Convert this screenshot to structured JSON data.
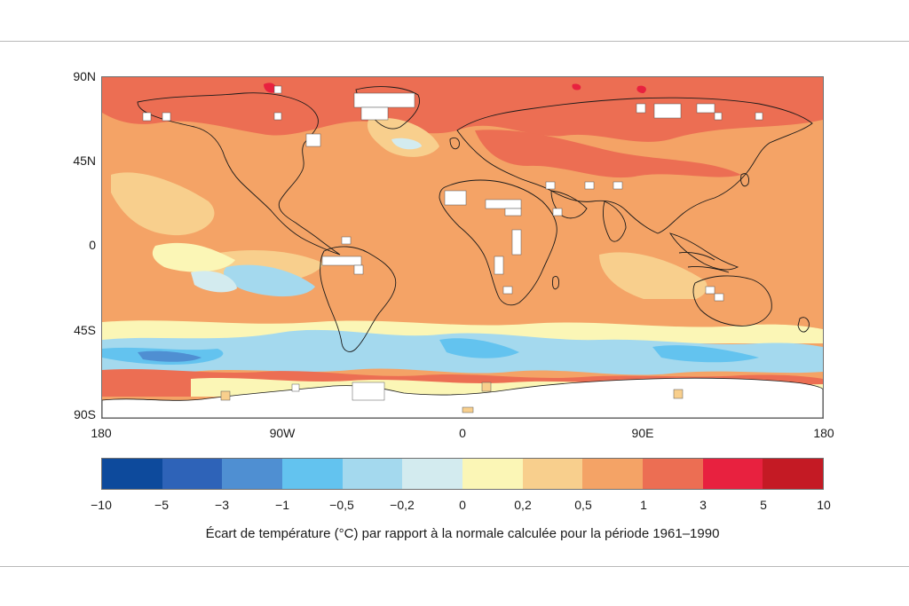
{
  "map": {
    "lat_labels": [
      "90N",
      "45N",
      "0",
      "45S",
      "90S"
    ],
    "lon_labels": [
      "180",
      "90W",
      "0",
      "90E",
      "180"
    ]
  },
  "legend": {
    "colors": [
      "#0d4a9c",
      "#2e63b8",
      "#4f8fd2",
      "#63c3ef",
      "#a4d9ee",
      "#d3ebef",
      "#fbf6b6",
      "#f8cf8d",
      "#f4a366",
      "#ec6e53",
      "#e8213f",
      "#c41a24"
    ],
    "tick_labels": [
      "−10",
      "−5",
      "−3",
      "−1",
      "−0,5",
      "−0,2",
      "0",
      "0,2",
      "0,5",
      "1",
      "3",
      "5",
      "10"
    ],
    "caption": "Écart de température (°C) par rapport à la normale calculée pour la période 1961–1990"
  }
}
